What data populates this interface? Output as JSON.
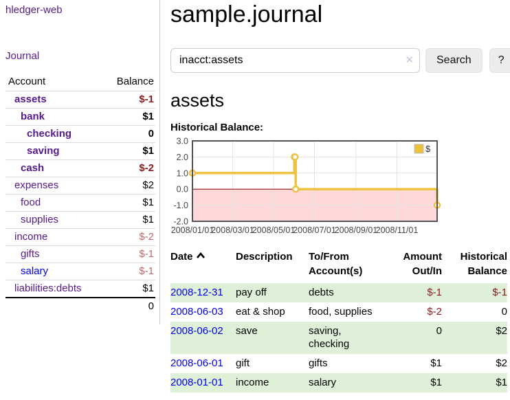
{
  "app": {
    "brand": "hledger-web",
    "nav_journal": "Journal"
  },
  "colors": {
    "link_purple": "#551a8b",
    "link_blue": "#0000ee",
    "negative_red": "#8b1a1a",
    "negative_faint_red": "#bb6a6a",
    "row_stripe_green": "#dff0d8"
  },
  "sidebar": {
    "header": {
      "account": "Account",
      "balance": "Balance"
    },
    "accounts": [
      {
        "name": "assets",
        "depth": 1,
        "bold": true,
        "balance": "$-1",
        "balance_class": "neg"
      },
      {
        "name": "bank",
        "depth": 2,
        "bold": true,
        "balance": "$1",
        "balance_class": "pos"
      },
      {
        "name": "checking",
        "depth": 3,
        "bold": true,
        "balance": "0",
        "balance_class": "pos"
      },
      {
        "name": "saving",
        "depth": 3,
        "bold": true,
        "balance": "$1",
        "balance_class": "pos"
      },
      {
        "name": "cash",
        "depth": 2,
        "bold": true,
        "balance": "$-2",
        "balance_class": "neg"
      },
      {
        "name": "expenses",
        "depth": 1,
        "bold": false,
        "balance": "$2",
        "balance_class": "pos"
      },
      {
        "name": "food",
        "depth": 2,
        "bold": false,
        "balance": "$1",
        "balance_class": "pos"
      },
      {
        "name": "supplies",
        "depth": 2,
        "bold": false,
        "balance": "$1",
        "balance_class": "pos"
      },
      {
        "name": "income",
        "depth": 1,
        "bold": false,
        "balance": "$-2",
        "balance_class": "neg-faint"
      },
      {
        "name": "gifts",
        "depth": 2,
        "bold": false,
        "balance": "$-1",
        "balance_class": "neg-faint"
      },
      {
        "name": "salary",
        "depth": 2,
        "bold": false,
        "balance": "$-1",
        "balance_class": "neg-faint",
        "link_class": "blue"
      },
      {
        "name": "liabilities:debts",
        "depth": 1,
        "bold": false,
        "balance": "$1",
        "balance_class": "pos"
      }
    ],
    "total": "0"
  },
  "header": {
    "title": "sample.journal"
  },
  "search": {
    "value": "inacct:assets",
    "clear_glyph": "✕",
    "button_label": "Search",
    "help_label": "?"
  },
  "account_page": {
    "title": "assets",
    "chart_label": "Historical Balance:"
  },
  "chart_data": {
    "type": "line",
    "step": true,
    "title": "Historical Balance:",
    "x": [
      "2008-01-01",
      "2008-06-01",
      "2008-06-02",
      "2008-06-03",
      "2008-12-31"
    ],
    "series": [
      {
        "name": "$",
        "color": "#edc240",
        "values": [
          1,
          2,
          2,
          0,
          -1
        ]
      }
    ],
    "x_range": [
      "2008-01-01",
      "2008-12-31"
    ],
    "ylim": [
      -2,
      3
    ],
    "y_ticks": [
      "3.0",
      "2.0",
      "1.0",
      "0.0",
      "-1.0",
      "-2.0"
    ],
    "x_tick_labels": [
      "2008/01/01",
      "2008/03/01",
      "2008/05/01",
      "2008/07/01",
      "2008/09/01",
      "2008/11/01"
    ],
    "grid": true,
    "legend": {
      "position": "top-right",
      "entries": [
        {
          "label": "$",
          "color": "#edc240"
        }
      ]
    },
    "negative_region_color": "#ffd9d9",
    "zero_line_color": "#8b0000",
    "border_color": "#545454",
    "grid_color": "#e3e3e3"
  },
  "register": {
    "columns": {
      "date": "Date",
      "description": "Description",
      "accounts": "To/From Account(s)",
      "amount": "Amount Out/In",
      "balance": "Historical Balance"
    },
    "sort": {
      "column": "date",
      "direction": "ascending"
    },
    "rows": [
      {
        "date": "2008-12-31",
        "description": "pay off",
        "accounts": "debts",
        "amount": "$-1",
        "amount_neg": true,
        "balance": "$-1",
        "balance_neg": true
      },
      {
        "date": "2008-06-03",
        "description": "eat & shop",
        "accounts": "food, supplies",
        "amount": "$-2",
        "amount_neg": true,
        "balance": "0",
        "balance_neg": false
      },
      {
        "date": "2008-06-02",
        "description": "save",
        "accounts": "saving, checking",
        "amount": "0",
        "amount_neg": false,
        "balance": "$2",
        "balance_neg": false
      },
      {
        "date": "2008-06-01",
        "description": "gift",
        "accounts": "gifts",
        "amount": "$1",
        "amount_neg": false,
        "balance": "$2",
        "balance_neg": false
      },
      {
        "date": "2008-01-01",
        "description": "income",
        "accounts": "salary",
        "amount": "$1",
        "amount_neg": false,
        "balance": "$1",
        "balance_neg": false
      }
    ]
  }
}
